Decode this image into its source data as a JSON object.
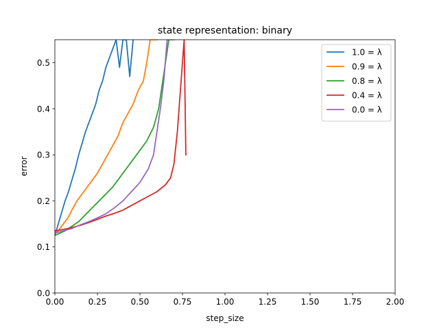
{
  "chart_data": {
    "type": "line",
    "title": "state representation: binary",
    "xlabel": "step_size",
    "ylabel": "error",
    "xlim": [
      0,
      2
    ],
    "ylim": [
      0,
      0.55
    ],
    "x_ticks": [
      0,
      0.25,
      0.5,
      0.75,
      1.0,
      1.25,
      1.5,
      1.75,
      2.0
    ],
    "x_tick_labels": [
      "0.00",
      "0.25",
      "0.50",
      "0.75",
      "1.00",
      "1.25",
      "1.50",
      "1.75",
      "2.00"
    ],
    "y_ticks": [
      0,
      0.1,
      0.2,
      0.3,
      0.4,
      0.5
    ],
    "y_tick_labels": [
      "0.0",
      "0.1",
      "0.2",
      "0.3",
      "0.4",
      "0.5"
    ],
    "grid": false,
    "legend_position": "top-right",
    "series": [
      {
        "name": "1.0 = λ",
        "color": "#1f77b4",
        "x": [
          0.0,
          0.02,
          0.04,
          0.06,
          0.08,
          0.1,
          0.12,
          0.14,
          0.16,
          0.18,
          0.2,
          0.22,
          0.24,
          0.26,
          0.28,
          0.3,
          0.32,
          0.34,
          0.36,
          0.38,
          0.4,
          0.42,
          0.44,
          0.46
        ],
        "y": [
          0.125,
          0.15,
          0.175,
          0.2,
          0.22,
          0.245,
          0.27,
          0.3,
          0.325,
          0.35,
          0.37,
          0.39,
          0.41,
          0.44,
          0.46,
          0.49,
          0.51,
          0.53,
          0.55,
          0.49,
          0.55,
          0.55,
          0.47,
          0.55
        ]
      },
      {
        "name": "0.9 = λ",
        "color": "#ff7f0e",
        "x": [
          0.0,
          0.02,
          0.05,
          0.08,
          0.1,
          0.13,
          0.16,
          0.19,
          0.22,
          0.25,
          0.28,
          0.31,
          0.34,
          0.37,
          0.4,
          0.43,
          0.46,
          0.49,
          0.52,
          0.54,
          0.56,
          0.58,
          0.6
        ],
        "y": [
          0.13,
          0.135,
          0.15,
          0.165,
          0.18,
          0.2,
          0.215,
          0.23,
          0.245,
          0.26,
          0.28,
          0.3,
          0.32,
          0.34,
          0.37,
          0.39,
          0.41,
          0.44,
          0.46,
          0.5,
          0.55,
          0.55,
          0.55
        ]
      },
      {
        "name": "0.8 = λ",
        "color": "#2ca02c",
        "x": [
          0.0,
          0.03,
          0.06,
          0.1,
          0.14,
          0.18,
          0.22,
          0.26,
          0.3,
          0.34,
          0.38,
          0.42,
          0.46,
          0.5,
          0.54,
          0.58,
          0.61,
          0.63,
          0.65,
          0.67
        ],
        "y": [
          0.125,
          0.13,
          0.135,
          0.145,
          0.155,
          0.17,
          0.185,
          0.2,
          0.215,
          0.23,
          0.25,
          0.27,
          0.29,
          0.31,
          0.33,
          0.36,
          0.4,
          0.45,
          0.5,
          0.55
        ]
      },
      {
        "name": "0.4 = λ",
        "color": "#d62728",
        "x": [
          0.0,
          0.05,
          0.1,
          0.15,
          0.2,
          0.25,
          0.3,
          0.35,
          0.4,
          0.45,
          0.5,
          0.55,
          0.6,
          0.65,
          0.68,
          0.7,
          0.72,
          0.74,
          0.76,
          0.77
        ],
        "y": [
          0.135,
          0.138,
          0.142,
          0.147,
          0.153,
          0.16,
          0.167,
          0.173,
          0.18,
          0.19,
          0.2,
          0.21,
          0.22,
          0.235,
          0.25,
          0.28,
          0.35,
          0.45,
          0.55,
          0.3
        ]
      },
      {
        "name": "0.0 = λ",
        "color": "#9467bd",
        "x": [
          0.0,
          0.05,
          0.1,
          0.15,
          0.2,
          0.25,
          0.3,
          0.35,
          0.4,
          0.45,
          0.5,
          0.55,
          0.58,
          0.6,
          0.62,
          0.64,
          0.66,
          0.68,
          0.7
        ],
        "y": [
          0.13,
          0.135,
          0.14,
          0.148,
          0.155,
          0.163,
          0.172,
          0.185,
          0.2,
          0.22,
          0.24,
          0.27,
          0.3,
          0.35,
          0.4,
          0.46,
          0.55,
          0.55,
          0.55
        ]
      }
    ]
  }
}
